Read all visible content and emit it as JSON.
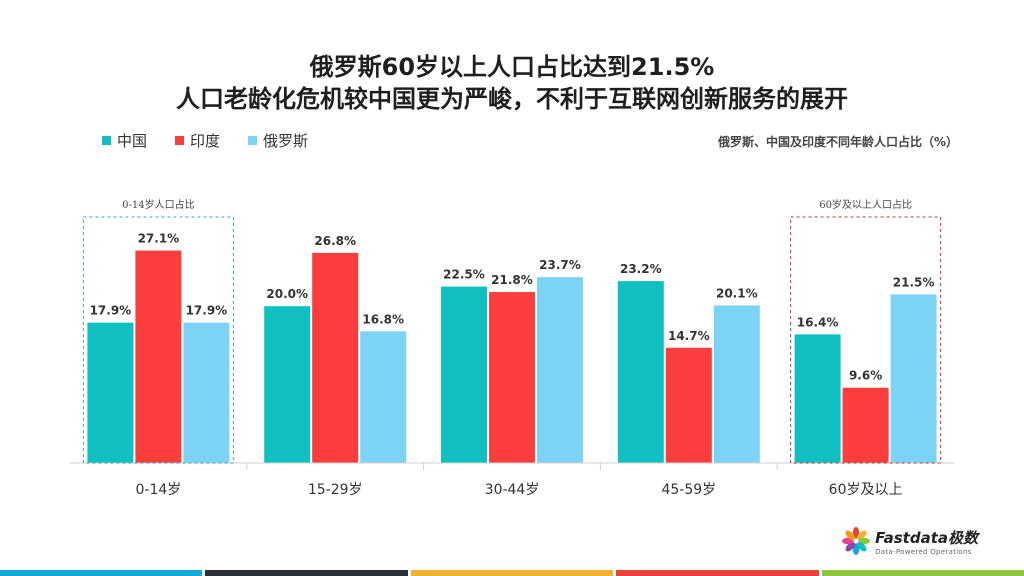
{
  "header": {
    "title_line1": "俄罗斯60岁以上人口占比达到21.5%",
    "title_line2": "人口老龄化危机较中国更为严峻，不利于互联网创新服务的展开"
  },
  "chart_data": {
    "type": "bar",
    "title": "俄罗斯、中国及印度不同年龄人口占比（%）",
    "categories": [
      "0-14岁",
      "15-29岁",
      "30-44岁",
      "45-59岁",
      "60岁及以上"
    ],
    "series": [
      {
        "name": "中国",
        "color": "#10bfbf",
        "values": [
          17.9,
          20.0,
          22.5,
          23.2,
          16.4
        ]
      },
      {
        "name": "印度",
        "color": "#fa3d3d",
        "values": [
          27.1,
          26.8,
          21.8,
          14.7,
          9.6
        ]
      },
      {
        "name": "俄罗斯",
        "color": "#7dd3f5",
        "values": [
          17.9,
          16.8,
          23.7,
          20.1,
          21.5
        ]
      }
    ],
    "ylim": [
      0,
      30
    ],
    "value_suffix": "%",
    "legend_position": "top-left",
    "grid": false,
    "annotations": [
      {
        "label": "0-14岁人口占比",
        "category_index": 0,
        "color": "#3aa6b9"
      },
      {
        "label": "60岁及以上人口占比",
        "category_index": 4,
        "color": "#b13c3c"
      }
    ]
  },
  "logo": {
    "name": "Fastdata极数",
    "tagline": "Data-Powered Operations"
  },
  "footer_colors": [
    "#16a8d8",
    "#2b2f3a",
    "#f2b233",
    "#e8423f",
    "#8dc63f"
  ]
}
